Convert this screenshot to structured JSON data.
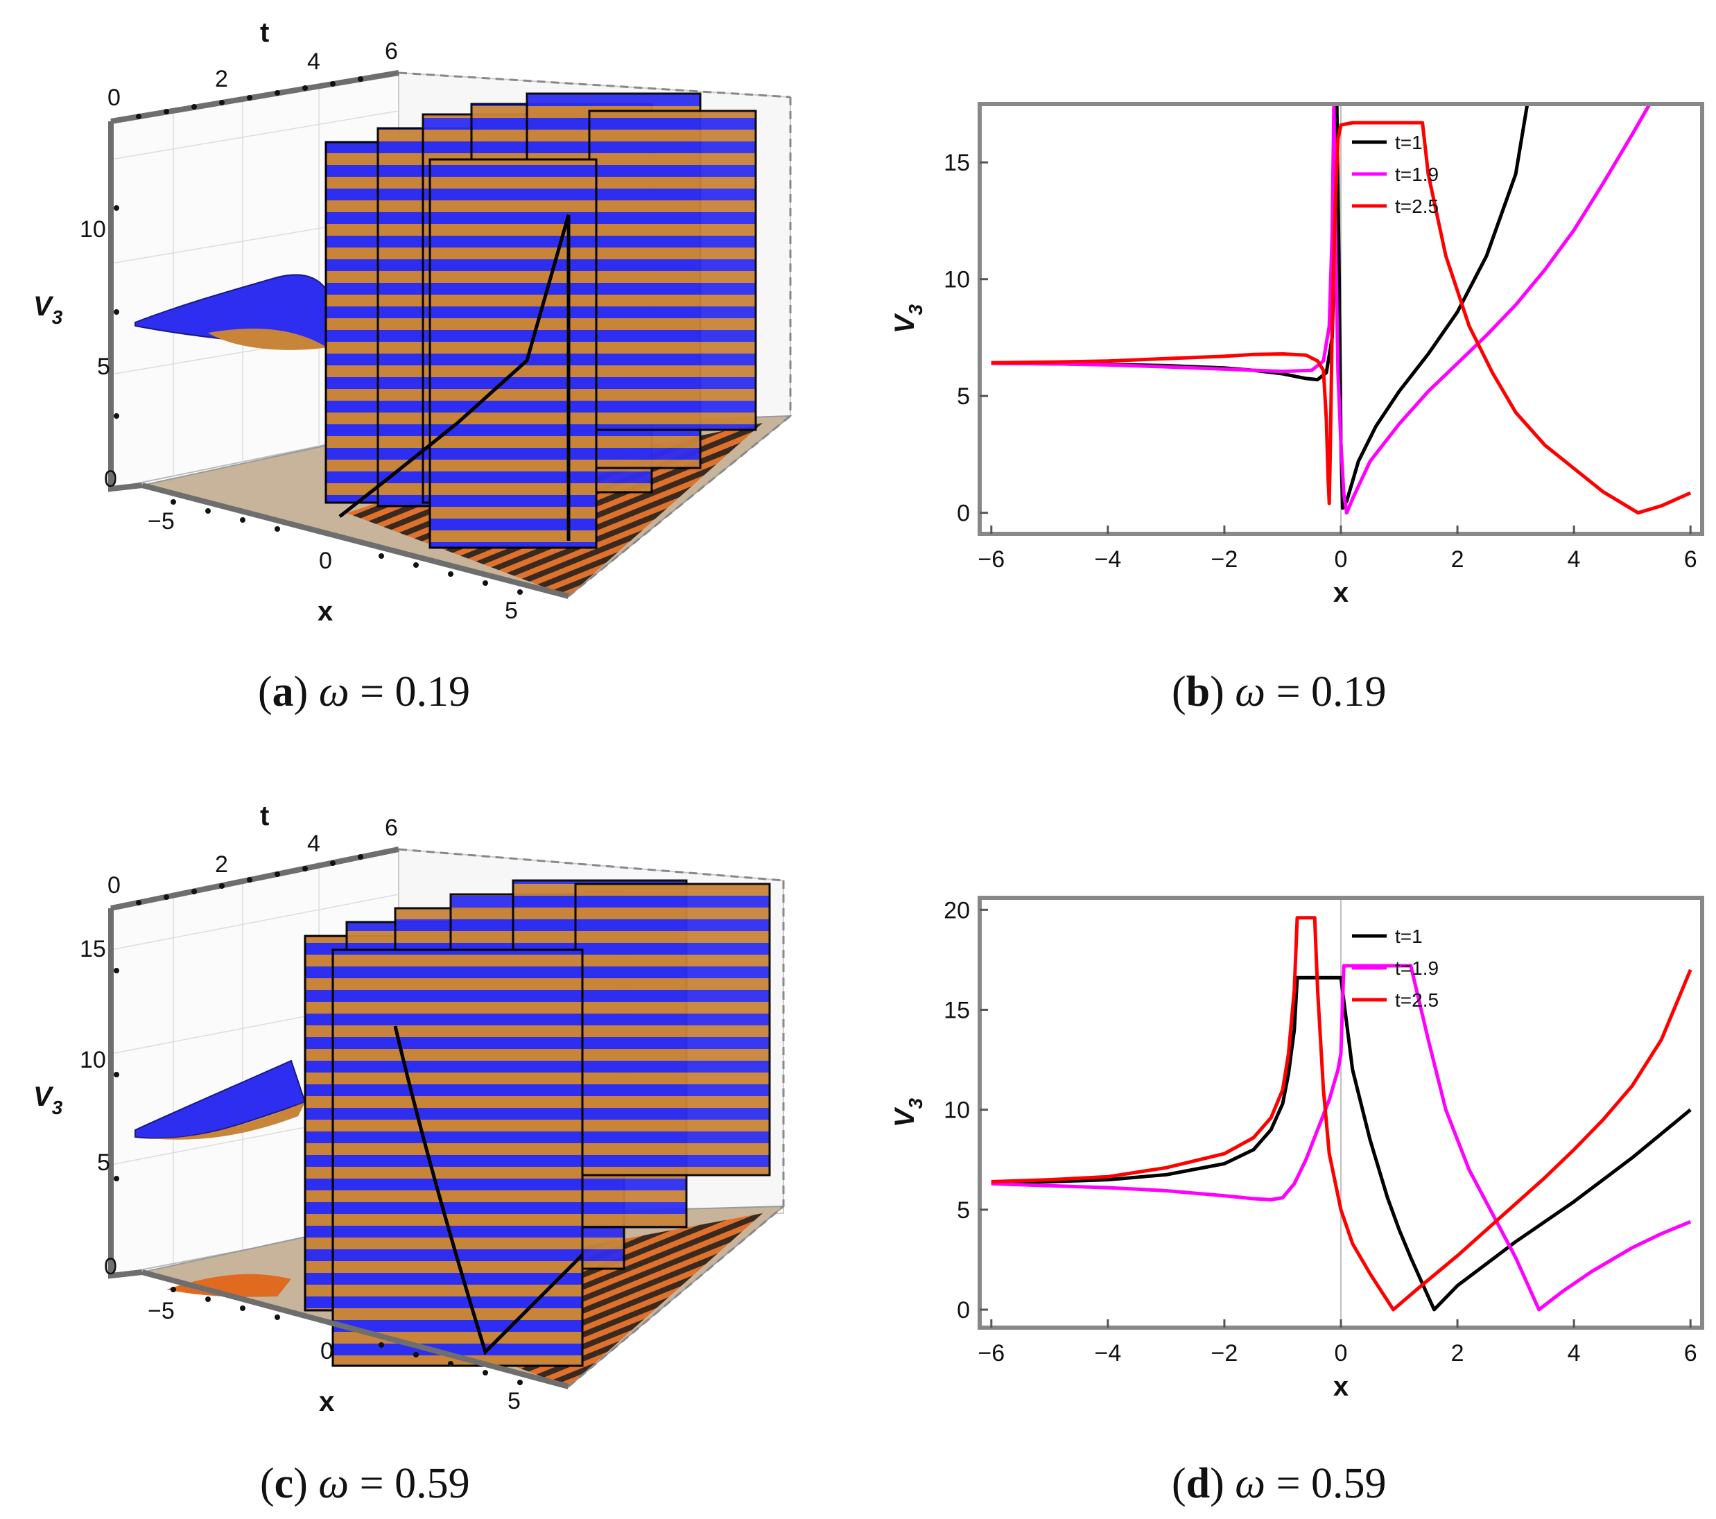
{
  "colors": {
    "black_series": "#000000",
    "magenta_series": "#ff00ff",
    "red_series": "#ff0000",
    "surface_blue": "#2e2ef0",
    "surface_orange": "#c8853a",
    "floor": "#c8b49a",
    "frame": "#777777"
  },
  "panels": [
    {
      "id": "a",
      "caption_letter": "a",
      "caption_eq": "= 0.19",
      "surface3d": {
        "t_label": "t",
        "x_label": "x",
        "z_label": "V",
        "z_sub": "3",
        "t_ticks": [
          "0",
          "2",
          "4",
          "6"
        ],
        "x_ticks": [
          "−5",
          "0",
          "5"
        ],
        "z_ticks": [
          "0",
          "5",
          "10"
        ]
      }
    },
    {
      "id": "c",
      "caption_letter": "c",
      "caption_eq": "= 0.59",
      "surface3d": {
        "t_label": "t",
        "x_label": "x",
        "z_label": "V",
        "z_sub": "3",
        "t_ticks": [
          "0",
          "2",
          "4",
          "6"
        ],
        "x_ticks": [
          "−5",
          "0",
          "5"
        ],
        "z_ticks": [
          "0",
          "5",
          "10",
          "15"
        ]
      }
    }
  ],
  "chart_data": [
    {
      "id": "b",
      "type": "line",
      "caption_letter": "b",
      "caption_eq": "= 0.19",
      "xlabel": "x",
      "ylabel": "V",
      "ylabel_sub": "3",
      "xlim": [
        -6.2,
        6.2
      ],
      "ylim": [
        -0.9,
        17.5
      ],
      "xticks": [
        -6,
        -4,
        -2,
        0,
        2,
        4,
        6
      ],
      "yticks": [
        0,
        5,
        10,
        15
      ],
      "legend": [
        "t=1",
        "t=1.9",
        "t=2.5"
      ],
      "series": [
        {
          "name": "t=1",
          "color": "#000000",
          "points": [
            [
              -6,
              6.4
            ],
            [
              -5,
              6.38
            ],
            [
              -4,
              6.35
            ],
            [
              -3,
              6.3
            ],
            [
              -2,
              6.2
            ],
            [
              -1.5,
              6.1
            ],
            [
              -1,
              5.95
            ],
            [
              -0.6,
              5.75
            ],
            [
              -0.4,
              5.7
            ],
            [
              -0.25,
              6.0
            ],
            [
              -0.15,
              7.5
            ],
            [
              -0.1,
              12
            ],
            [
              -0.07,
              17.5
            ],
            [
              -0.03,
              10
            ],
            [
              0,
              3
            ],
            [
              0.03,
              0.2
            ],
            [
              0.1,
              0.5
            ],
            [
              0.3,
              2.2
            ],
            [
              0.6,
              3.7
            ],
            [
              1,
              5.2
            ],
            [
              1.5,
              6.8
            ],
            [
              2,
              8.6
            ],
            [
              2.5,
              11
            ],
            [
              3,
              14.5
            ],
            [
              3.2,
              17.5
            ]
          ]
        },
        {
          "name": "t=1.9",
          "color": "#ff00ff",
          "points": [
            [
              -6,
              6.4
            ],
            [
              -5,
              6.38
            ],
            [
              -4,
              6.33
            ],
            [
              -3,
              6.25
            ],
            [
              -2,
              6.15
            ],
            [
              -1,
              6.05
            ],
            [
              -0.5,
              6.1
            ],
            [
              -0.3,
              6.5
            ],
            [
              -0.2,
              8
            ],
            [
              -0.15,
              12
            ],
            [
              -0.12,
              17.5
            ],
            [
              -0.1,
              13
            ],
            [
              -0.05,
              6
            ],
            [
              0,
              3
            ],
            [
              0.05,
              0.8
            ],
            [
              0.1,
              0
            ],
            [
              0.2,
              0.6
            ],
            [
              0.5,
              2.2
            ],
            [
              1,
              3.8
            ],
            [
              1.5,
              5.2
            ],
            [
              2,
              6.4
            ],
            [
              2.5,
              7.6
            ],
            [
              3,
              8.9
            ],
            [
              3.5,
              10.4
            ],
            [
              4,
              12.1
            ],
            [
              4.5,
              14.1
            ],
            [
              5,
              16.2
            ],
            [
              5.3,
              17.5
            ]
          ]
        },
        {
          "name": "t=2.5",
          "color": "#ff0000",
          "points": [
            [
              -6,
              6.42
            ],
            [
              -5,
              6.45
            ],
            [
              -4,
              6.5
            ],
            [
              -3,
              6.6
            ],
            [
              -2,
              6.7
            ],
            [
              -1.5,
              6.78
            ],
            [
              -1,
              6.8
            ],
            [
              -0.6,
              6.75
            ],
            [
              -0.4,
              6.5
            ],
            [
              -0.3,
              6.1
            ],
            [
              -0.25,
              4
            ],
            [
              -0.22,
              1.5
            ],
            [
              -0.2,
              0.4
            ],
            [
              -0.18,
              3
            ],
            [
              -0.15,
              8
            ],
            [
              -0.1,
              13
            ],
            [
              -0.05,
              16
            ],
            [
              0,
              16.6
            ],
            [
              0.2,
              16.7
            ],
            [
              1.4,
              16.7
            ],
            [
              1.5,
              14.5
            ],
            [
              1.8,
              11
            ],
            [
              2.2,
              8
            ],
            [
              2.6,
              6
            ],
            [
              3,
              4.3
            ],
            [
              3.5,
              2.9
            ],
            [
              4,
              1.9
            ],
            [
              4.5,
              0.9
            ],
            [
              5.1,
              0
            ],
            [
              5.5,
              0.3
            ],
            [
              6,
              0.85
            ]
          ]
        }
      ]
    },
    {
      "id": "d",
      "type": "line",
      "caption_letter": "d",
      "caption_eq": "= 0.59",
      "xlabel": "x",
      "ylabel": "V",
      "ylabel_sub": "3",
      "xlim": [
        -6.2,
        6.2
      ],
      "ylim": [
        -0.9,
        20.6
      ],
      "xticks": [
        -6,
        -4,
        -2,
        0,
        2,
        4,
        6
      ],
      "yticks": [
        0,
        5,
        10,
        15,
        20
      ],
      "legend": [
        "t=1",
        "t=1.9",
        "t=2.5"
      ],
      "series": [
        {
          "name": "t=1",
          "color": "#000000",
          "points": [
            [
              -6,
              6.35
            ],
            [
              -5,
              6.4
            ],
            [
              -4,
              6.5
            ],
            [
              -3,
              6.75
            ],
            [
              -2,
              7.3
            ],
            [
              -1.5,
              8
            ],
            [
              -1.2,
              9
            ],
            [
              -1,
              10.3
            ],
            [
              -0.9,
              11.8
            ],
            [
              -0.8,
              14
            ],
            [
              -0.75,
              16.6
            ],
            [
              -0.05,
              16.6
            ],
            [
              0,
              16.6
            ],
            [
              0.2,
              12
            ],
            [
              0.5,
              8.5
            ],
            [
              0.8,
              5.6
            ],
            [
              1,
              4
            ],
            [
              1.2,
              2.6
            ],
            [
              1.4,
              1.3
            ],
            [
              1.6,
              0
            ],
            [
              2,
              1.2
            ],
            [
              2.5,
              2.3
            ],
            [
              3,
              3.4
            ],
            [
              3.5,
              4.4
            ],
            [
              4,
              5.4
            ],
            [
              4.5,
              6.5
            ],
            [
              5,
              7.6
            ],
            [
              5.5,
              8.8
            ],
            [
              6,
              10
            ]
          ]
        },
        {
          "name": "t=1.9",
          "color": "#ff00ff",
          "points": [
            [
              -6,
              6.3
            ],
            [
              -5,
              6.2
            ],
            [
              -4,
              6.1
            ],
            [
              -3,
              5.95
            ],
            [
              -2,
              5.7
            ],
            [
              -1.5,
              5.55
            ],
            [
              -1.2,
              5.5
            ],
            [
              -1,
              5.6
            ],
            [
              -0.8,
              6.3
            ],
            [
              -0.6,
              7.5
            ],
            [
              -0.4,
              9
            ],
            [
              -0.2,
              10.5
            ],
            [
              -0.05,
              12
            ],
            [
              0,
              12.8
            ],
            [
              0.05,
              17.2
            ],
            [
              1.2,
              17.2
            ],
            [
              1.5,
              13.5
            ],
            [
              1.8,
              10
            ],
            [
              2.2,
              7
            ],
            [
              2.6,
              4.8
            ],
            [
              3,
              2.6
            ],
            [
              3.4,
              0
            ],
            [
              3.8,
              0.9
            ],
            [
              4.3,
              1.9
            ],
            [
              5,
              3.1
            ],
            [
              5.5,
              3.8
            ],
            [
              6,
              4.4
            ]
          ]
        },
        {
          "name": "t=2.5",
          "color": "#ff0000",
          "points": [
            [
              -6,
              6.4
            ],
            [
              -5,
              6.5
            ],
            [
              -4,
              6.65
            ],
            [
              -3,
              7.1
            ],
            [
              -2,
              7.8
            ],
            [
              -1.5,
              8.6
            ],
            [
              -1.2,
              9.6
            ],
            [
              -1,
              11
            ],
            [
              -0.9,
              12.8
            ],
            [
              -0.8,
              16
            ],
            [
              -0.75,
              19.6
            ],
            [
              -0.45,
              19.6
            ],
            [
              -0.4,
              16
            ],
            [
              -0.3,
              11
            ],
            [
              -0.2,
              7.8
            ],
            [
              0,
              5
            ],
            [
              0.2,
              3.3
            ],
            [
              0.5,
              1.8
            ],
            [
              0.7,
              0.9
            ],
            [
              0.9,
              0
            ],
            [
              1.3,
              1
            ],
            [
              2,
              2.7
            ],
            [
              2.5,
              4
            ],
            [
              3,
              5.3
            ],
            [
              3.5,
              6.6
            ],
            [
              4,
              8
            ],
            [
              4.5,
              9.5
            ],
            [
              5,
              11.2
            ],
            [
              5.5,
              13.5
            ],
            [
              6,
              17
            ]
          ]
        }
      ]
    }
  ]
}
